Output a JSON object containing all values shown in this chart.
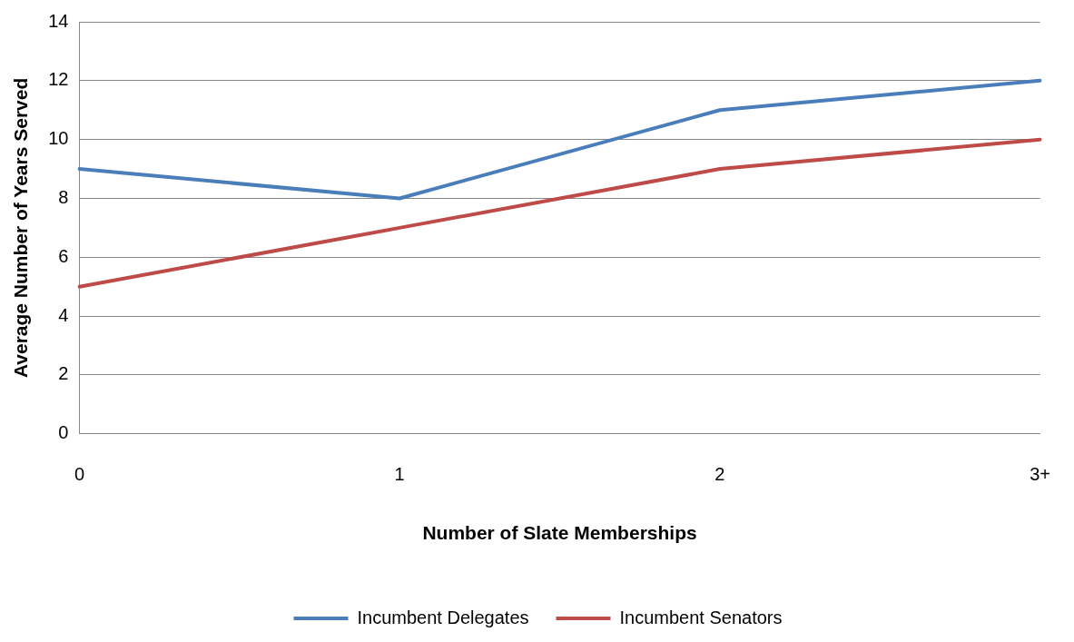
{
  "chart_data": {
    "type": "line",
    "xlabel": "Number of Slate Memberships",
    "ylabel": "Average Number of Years Served",
    "categories": [
      "0",
      "1",
      "2",
      "3+"
    ],
    "series": [
      {
        "name": "Incumbent Delegates",
        "color": "#4a7ebb",
        "values": [
          9,
          8,
          11,
          12
        ]
      },
      {
        "name": "Incumbent Senators",
        "color": "#be4b48",
        "values": [
          5,
          7,
          9,
          10
        ]
      }
    ],
    "ylim": [
      0,
      14
    ],
    "yticks": [
      0,
      2,
      4,
      6,
      8,
      10,
      12,
      14
    ],
    "grid": "y",
    "legend": "bottom",
    "marker": "none",
    "line_style": "solid"
  }
}
